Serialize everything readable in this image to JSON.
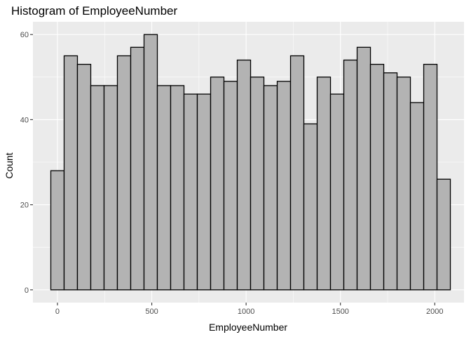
{
  "chart_data": {
    "type": "bar",
    "title": "Histogram of EmployeeNumber",
    "xlabel": "EmployeeNumber",
    "ylabel": "Count",
    "bin_width": 70.6,
    "first_bin_center": 0,
    "values": [
      28,
      55,
      53,
      48,
      48,
      55,
      57,
      60,
      48,
      48,
      46,
      46,
      50,
      49,
      54,
      50,
      48,
      49,
      55,
      39,
      50,
      46,
      54,
      57,
      53,
      51,
      50,
      44,
      53,
      26
    ],
    "xlim": [
      -130,
      2155
    ],
    "ylim": [
      -3,
      63
    ],
    "x_ticks": [
      0,
      500,
      1000,
      1500,
      2000
    ],
    "y_ticks": [
      0,
      20,
      40,
      60
    ],
    "x_tick_labels": [
      "0",
      "500",
      "1000",
      "1500",
      "2000"
    ],
    "y_tick_labels": [
      "0",
      "20",
      "40",
      "60"
    ],
    "grid": true,
    "colors": {
      "panel": "#ebebeb",
      "bar_fill": "#b3b3b3",
      "bar_outline": "#000000",
      "grid": "#ffffff"
    }
  }
}
